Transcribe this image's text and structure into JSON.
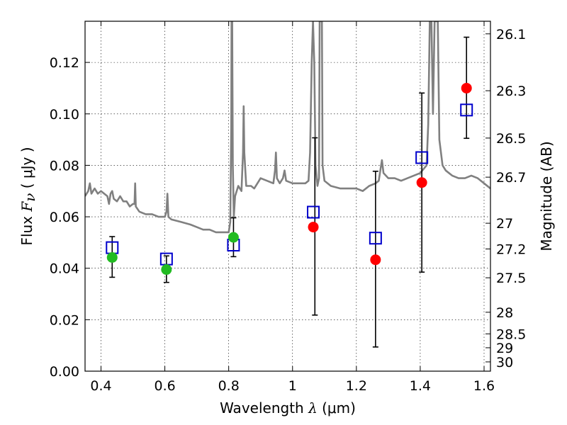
{
  "chart_data": {
    "type": "scatter",
    "xlabel": "Wavelength  λ (μm)",
    "xlabel_parts": {
      "prefix": "Wavelength  ",
      "symbol": "λ",
      "suffix": " (μm)"
    },
    "ylabel": "Flux  Fν  ( μJy )",
    "ylabel_parts": {
      "prefix": "Flux  ",
      "symbol": "F",
      "subscript": "ν",
      "suffix": "  ( μJy )"
    },
    "y2label": "Magnitude (AB)",
    "xlim": [
      0.35,
      1.62
    ],
    "ylim": [
      0.0,
      0.136
    ],
    "grid": true,
    "grid_style": "dotted",
    "x_ticks": [
      {
        "value": 0.4,
        "label": "0.4"
      },
      {
        "value": 0.6,
        "label": "0.6"
      },
      {
        "value": 0.8,
        "label": "0.8"
      },
      {
        "value": 1.0,
        "label": "1"
      },
      {
        "value": 1.2,
        "label": "1.2"
      },
      {
        "value": 1.4,
        "label": "1.4"
      },
      {
        "value": 1.6,
        "label": "1.6"
      }
    ],
    "y_ticks": [
      {
        "value": 0.0,
        "label": "0.00"
      },
      {
        "value": 0.02,
        "label": "0.02"
      },
      {
        "value": 0.04,
        "label": "0.04"
      },
      {
        "value": 0.06,
        "label": "0.06"
      },
      {
        "value": 0.08,
        "label": "0.08"
      },
      {
        "value": 0.1,
        "label": "0.10"
      },
      {
        "value": 0.12,
        "label": "0.12"
      }
    ],
    "y2_ticks": [
      {
        "flux": 0.1311,
        "label": "26.1"
      },
      {
        "flux": 0.109,
        "label": "26.3"
      },
      {
        "flux": 0.0906,
        "label": "26.5"
      },
      {
        "flux": 0.0754,
        "label": "26.7"
      },
      {
        "flux": 0.0575,
        "label": "27"
      },
      {
        "flux": 0.0475,
        "label": "27.2"
      },
      {
        "flux": 0.0363,
        "label": "27.5"
      },
      {
        "flux": 0.0229,
        "label": "28"
      },
      {
        "flux": 0.0145,
        "label": "28.5"
      },
      {
        "flux": 0.0091,
        "label": "29"
      },
      {
        "flux": 0.0036,
        "label": "30"
      }
    ],
    "series": [
      {
        "style": "model-spectrum",
        "color": "#808080",
        "points": [
          [
            0.35,
            0.068
          ],
          [
            0.36,
            0.07
          ],
          [
            0.365,
            0.073
          ],
          [
            0.37,
            0.069
          ],
          [
            0.38,
            0.071
          ],
          [
            0.39,
            0.069
          ],
          [
            0.4,
            0.07
          ],
          [
            0.41,
            0.069
          ],
          [
            0.42,
            0.068
          ],
          [
            0.425,
            0.065
          ],
          [
            0.43,
            0.069
          ],
          [
            0.435,
            0.07
          ],
          [
            0.44,
            0.067
          ],
          [
            0.45,
            0.066
          ],
          [
            0.46,
            0.068
          ],
          [
            0.47,
            0.066
          ],
          [
            0.48,
            0.066
          ],
          [
            0.49,
            0.064
          ],
          [
            0.5,
            0.065
          ],
          [
            0.505,
            0.065
          ],
          [
            0.507,
            0.073
          ],
          [
            0.509,
            0.064
          ],
          [
            0.52,
            0.062
          ],
          [
            0.54,
            0.061
          ],
          [
            0.56,
            0.061
          ],
          [
            0.58,
            0.06
          ],
          [
            0.6,
            0.06
          ],
          [
            0.605,
            0.062
          ],
          [
            0.608,
            0.069
          ],
          [
            0.611,
            0.06
          ],
          [
            0.62,
            0.059
          ],
          [
            0.65,
            0.058
          ],
          [
            0.68,
            0.057
          ],
          [
            0.7,
            0.056
          ],
          [
            0.72,
            0.055
          ],
          [
            0.74,
            0.055
          ],
          [
            0.76,
            0.054
          ],
          [
            0.78,
            0.054
          ],
          [
            0.8,
            0.054
          ],
          [
            0.805,
            0.058
          ],
          [
            0.808,
            0.095
          ],
          [
            0.809,
            0.136
          ],
          [
            0.811,
            0.136
          ],
          [
            0.813,
            0.08
          ],
          [
            0.816,
            0.06
          ],
          [
            0.82,
            0.068
          ],
          [
            0.83,
            0.072
          ],
          [
            0.84,
            0.07
          ],
          [
            0.845,
            0.085
          ],
          [
            0.847,
            0.103
          ],
          [
            0.849,
            0.085
          ],
          [
            0.855,
            0.072
          ],
          [
            0.87,
            0.072
          ],
          [
            0.88,
            0.071
          ],
          [
            0.9,
            0.075
          ],
          [
            0.92,
            0.074
          ],
          [
            0.94,
            0.073
          ],
          [
            0.945,
            0.078
          ],
          [
            0.948,
            0.085
          ],
          [
            0.951,
            0.075
          ],
          [
            0.96,
            0.073
          ],
          [
            0.97,
            0.075
          ],
          [
            0.975,
            0.078
          ],
          [
            0.98,
            0.074
          ],
          [
            1.0,
            0.073
          ],
          [
            1.02,
            0.073
          ],
          [
            1.04,
            0.073
          ],
          [
            1.05,
            0.074
          ],
          [
            1.055,
            0.085
          ],
          [
            1.06,
            0.12
          ],
          [
            1.064,
            0.136
          ],
          [
            1.068,
            0.12
          ],
          [
            1.072,
            0.08
          ],
          [
            1.078,
            0.072
          ],
          [
            1.083,
            0.075
          ],
          [
            1.085,
            0.136
          ],
          [
            1.092,
            0.136
          ],
          [
            1.094,
            0.08
          ],
          [
            1.1,
            0.074
          ],
          [
            1.12,
            0.072
          ],
          [
            1.15,
            0.071
          ],
          [
            1.18,
            0.071
          ],
          [
            1.2,
            0.071
          ],
          [
            1.22,
            0.07
          ],
          [
            1.24,
            0.072
          ],
          [
            1.26,
            0.073
          ],
          [
            1.27,
            0.074
          ],
          [
            1.275,
            0.078
          ],
          [
            1.28,
            0.082
          ],
          [
            1.285,
            0.077
          ],
          [
            1.3,
            0.075
          ],
          [
            1.32,
            0.075
          ],
          [
            1.34,
            0.074
          ],
          [
            1.36,
            0.075
          ],
          [
            1.38,
            0.076
          ],
          [
            1.4,
            0.077
          ],
          [
            1.42,
            0.08
          ],
          [
            1.425,
            0.096
          ],
          [
            1.43,
            0.136
          ],
          [
            1.435,
            0.136
          ],
          [
            1.44,
            0.1
          ],
          [
            1.445,
            0.136
          ],
          [
            1.455,
            0.136
          ],
          [
            1.46,
            0.09
          ],
          [
            1.47,
            0.08
          ],
          [
            1.48,
            0.078
          ],
          [
            1.5,
            0.076
          ],
          [
            1.52,
            0.075
          ],
          [
            1.54,
            0.075
          ],
          [
            1.56,
            0.076
          ],
          [
            1.58,
            0.075
          ],
          [
            1.6,
            0.073
          ],
          [
            1.62,
            0.071
          ]
        ]
      },
      {
        "style": "error-bars",
        "color": "#000000",
        "points": [
          {
            "x": 0.435,
            "low": 0.0365,
            "high": 0.0523
          },
          {
            "x": 0.605,
            "low": 0.0345,
            "high": 0.0448
          },
          {
            "x": 0.815,
            "low": 0.0445,
            "high": 0.0596
          },
          {
            "x": 1.07,
            "low": 0.0218,
            "high": 0.0907
          },
          {
            "x": 1.26,
            "low": 0.0094,
            "high": 0.0777
          },
          {
            "x": 1.405,
            "low": 0.0385,
            "high": 0.1081
          },
          {
            "x": 1.545,
            "low": 0.0905,
            "high": 0.1298
          }
        ]
      },
      {
        "style": "open-square",
        "color": "#0000cc",
        "points": [
          [
            0.435,
            0.048
          ],
          [
            0.605,
            0.0436
          ],
          [
            0.815,
            0.049
          ],
          [
            1.065,
            0.0618
          ],
          [
            1.26,
            0.0517
          ],
          [
            1.405,
            0.083
          ],
          [
            1.545,
            0.1015
          ]
        ]
      },
      {
        "style": "filled-circle",
        "color": "#22bb22",
        "points": [
          [
            0.435,
            0.0442
          ],
          [
            0.605,
            0.0395
          ],
          [
            0.815,
            0.052
          ]
        ]
      },
      {
        "style": "filled-circle",
        "color": "#ff0000",
        "points": [
          [
            1.065,
            0.056
          ],
          [
            1.26,
            0.0433
          ],
          [
            1.405,
            0.0733
          ],
          [
            1.545,
            0.11
          ]
        ]
      }
    ]
  }
}
